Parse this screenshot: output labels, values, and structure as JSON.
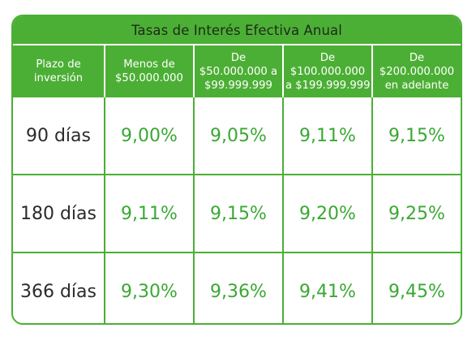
{
  "title": "Tasas de Interés Efectiva Anual",
  "columns": [
    [
      "Plazo de",
      "inversión"
    ],
    [
      "Menos de",
      "$50.000.000"
    ],
    [
      "De",
      "$50.000.000 a",
      "$99.999.999"
    ],
    [
      "De",
      "$100.000.000",
      "a $199.999.999"
    ],
    [
      "De",
      "$200.000.000",
      "en adelante"
    ]
  ],
  "rows": [
    {
      "term": "90 días",
      "rates": [
        "9,00%",
        "9,05%",
        "9,11%",
        "9,15%"
      ]
    },
    {
      "term": "180 días",
      "rates": [
        "9,11%",
        "9,15%",
        "9,20%",
        "9,25%"
      ]
    },
    {
      "term": "366 días",
      "rates": [
        "9,30%",
        "9,36%",
        "9,41%",
        "9,45%"
      ]
    }
  ],
  "colors": {
    "accent_green": "#4caf35",
    "rate_text_green": "#3aa833",
    "header_text": "#ffffff",
    "title_text": "#1e2a1a"
  }
}
